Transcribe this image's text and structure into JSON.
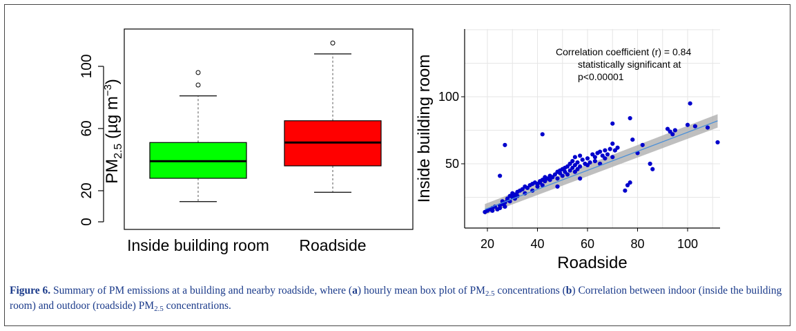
{
  "chart_data": [
    {
      "type": "box",
      "ylabel": "PM",
      "ylabel_sub": "2.5",
      "ylabel_unit": " (µg m",
      "ylabel_unit_sup": "−3",
      "ylabel_unit_end": ")",
      "ylim": [
        0,
        120
      ],
      "yticks": [
        "0",
        "20",
        "60",
        "100"
      ],
      "ytick_values": [
        0,
        20,
        60,
        100
      ],
      "categories": [
        "Inside building room",
        "Roadside"
      ],
      "boxes": [
        {
          "name": "Inside building room",
          "whisker_low": 13,
          "q1": 28,
          "median": 39,
          "q3": 51,
          "whisker_high": 81,
          "outliers": [
            88,
            96
          ],
          "color": "#00ff00"
        },
        {
          "name": "Roadside",
          "whisker_low": 19,
          "q1": 36,
          "median": 51,
          "q3": 65,
          "whisker_high": 108,
          "outliers": [
            115
          ],
          "color": "#ff0000"
        }
      ]
    },
    {
      "type": "scatter",
      "xlabel": "Roadside",
      "ylabel": "Inside building room",
      "xlim": [
        14,
        116
      ],
      "ylim": [
        5,
        150
      ],
      "xticks": [
        "20",
        "40",
        "60",
        "80",
        "100"
      ],
      "xtick_values": [
        20,
        40,
        60,
        80,
        100
      ],
      "yticks": [
        "50",
        "100"
      ],
      "ytick_values": [
        50,
        100
      ],
      "grid": true,
      "annotation": [
        "Correlation coefficient (r) = 0.84",
        "statistically significant at",
        "p<0.00001"
      ],
      "fit_line": {
        "x": [
          19,
          112
        ],
        "y": [
          16,
          82
        ]
      },
      "point_color": "#0000cc",
      "fit_color": "#4a8fd8",
      "x": [
        19,
        20,
        21,
        22,
        22,
        23,
        24,
        25,
        25,
        26,
        26,
        27,
        27,
        28,
        28,
        29,
        29,
        30,
        30,
        31,
        31,
        32,
        32,
        33,
        34,
        35,
        35,
        36,
        37,
        38,
        38,
        39,
        40,
        40,
        41,
        41,
        42,
        42,
        43,
        43,
        44,
        45,
        45,
        46,
        47,
        48,
        48,
        49,
        49,
        50,
        50,
        51,
        51,
        52,
        52,
        53,
        53,
        54,
        54,
        55,
        55,
        55,
        56,
        56,
        57,
        57,
        58,
        59,
        60,
        60,
        61,
        62,
        63,
        63,
        64,
        65,
        65,
        66,
        67,
        67,
        68,
        69,
        70,
        70,
        71,
        72,
        75,
        76,
        77,
        78,
        80,
        82,
        85,
        86,
        92,
        93,
        94,
        95,
        100,
        101,
        103,
        108,
        112,
        27,
        42,
        25,
        70,
        48,
        57,
        77
      ],
      "y": [
        14,
        15,
        16,
        15,
        17,
        18,
        16,
        19,
        17,
        20,
        22,
        21,
        18,
        24,
        23,
        26,
        22,
        25,
        28,
        27,
        24,
        29,
        26,
        30,
        31,
        28,
        33,
        32,
        34,
        30,
        35,
        36,
        33,
        35,
        37,
        36,
        38,
        34,
        40,
        37,
        39,
        38,
        41,
        40,
        42,
        44,
        39,
        45,
        43,
        41,
        46,
        47,
        44,
        48,
        42,
        45,
        50,
        47,
        52,
        44,
        49,
        55,
        46,
        51,
        48,
        56,
        53,
        50,
        49,
        54,
        51,
        57,
        52,
        55,
        58,
        50,
        59,
        56,
        60,
        54,
        57,
        61,
        55,
        65,
        60,
        62,
        30,
        34,
        36,
        68,
        58,
        64,
        50,
        46,
        76,
        74,
        72,
        75,
        79,
        95,
        78,
        77,
        66,
        64,
        72,
        41,
        80,
        33,
        39,
        84
      ]
    }
  ],
  "caption": {
    "figure_label": "Figure 6.",
    "part1": " Summary of PM emissions at a building and nearby roadside, where (",
    "a": "a",
    "part2": ") hourly mean box plot of PM",
    "sub1": "2.5",
    "part3": " concentrations (",
    "b": "b",
    "part4": ") Correlation between indoor (inside the building room) and outdoor (roadside) PM",
    "sub2": "2.5",
    "part5": " concentrations."
  }
}
